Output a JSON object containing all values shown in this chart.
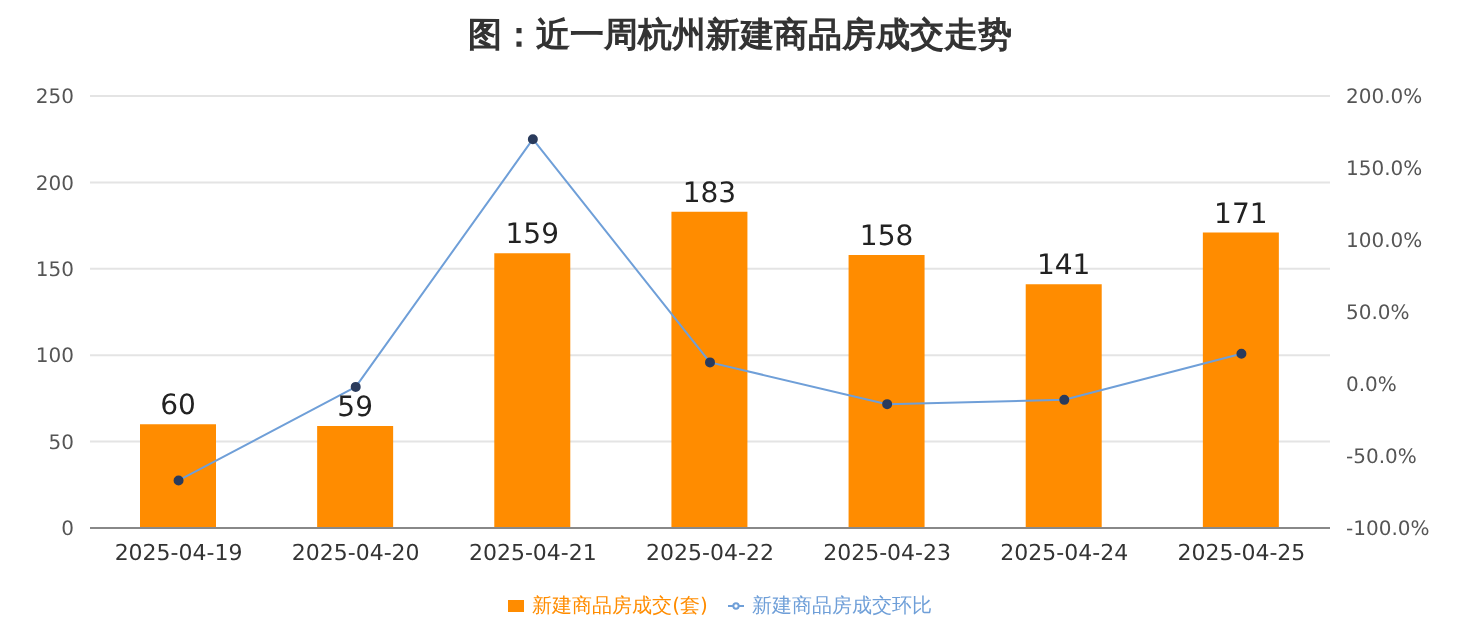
{
  "chart_data": {
    "type": "bar",
    "title": "图：近一周杭州新建商品房成交走势",
    "categories": [
      "2025-04-19",
      "2025-04-20",
      "2025-04-21",
      "2025-04-22",
      "2025-04-23",
      "2025-04-24",
      "2025-04-25"
    ],
    "series": [
      {
        "name": "新建商品房成交(套)",
        "color": "#ff8c00",
        "values": [
          60,
          59,
          159,
          183,
          158,
          141,
          171
        ],
        "value_labels": [
          "60",
          "59",
          "159",
          "183",
          "158",
          "141",
          "171"
        ]
      },
      {
        "name": "新建商品房成交环比",
        "type": "line",
        "axis": "y2",
        "color": "#6f9fd8",
        "values": [
          -67,
          -2,
          170,
          15,
          -14,
          -11,
          21
        ],
        "marker": "circle"
      }
    ],
    "ylim": [
      0,
      250
    ],
    "yticks": [
      0,
      50,
      100,
      150,
      200,
      250
    ],
    "y2lim": [
      -100,
      200
    ],
    "y2ticks": [
      {
        "value": -100,
        "label": "-100.0%"
      },
      {
        "value": -50,
        "label": "-50.0%"
      },
      {
        "value": 0,
        "label": "0.0%"
      },
      {
        "value": 50,
        "label": "50.0%"
      },
      {
        "value": 100,
        "label": "100.0%"
      },
      {
        "value": 150,
        "label": "150.0%"
      },
      {
        "value": 200,
        "label": "200.0%"
      }
    ],
    "grid": "y",
    "legend": "bottom"
  }
}
